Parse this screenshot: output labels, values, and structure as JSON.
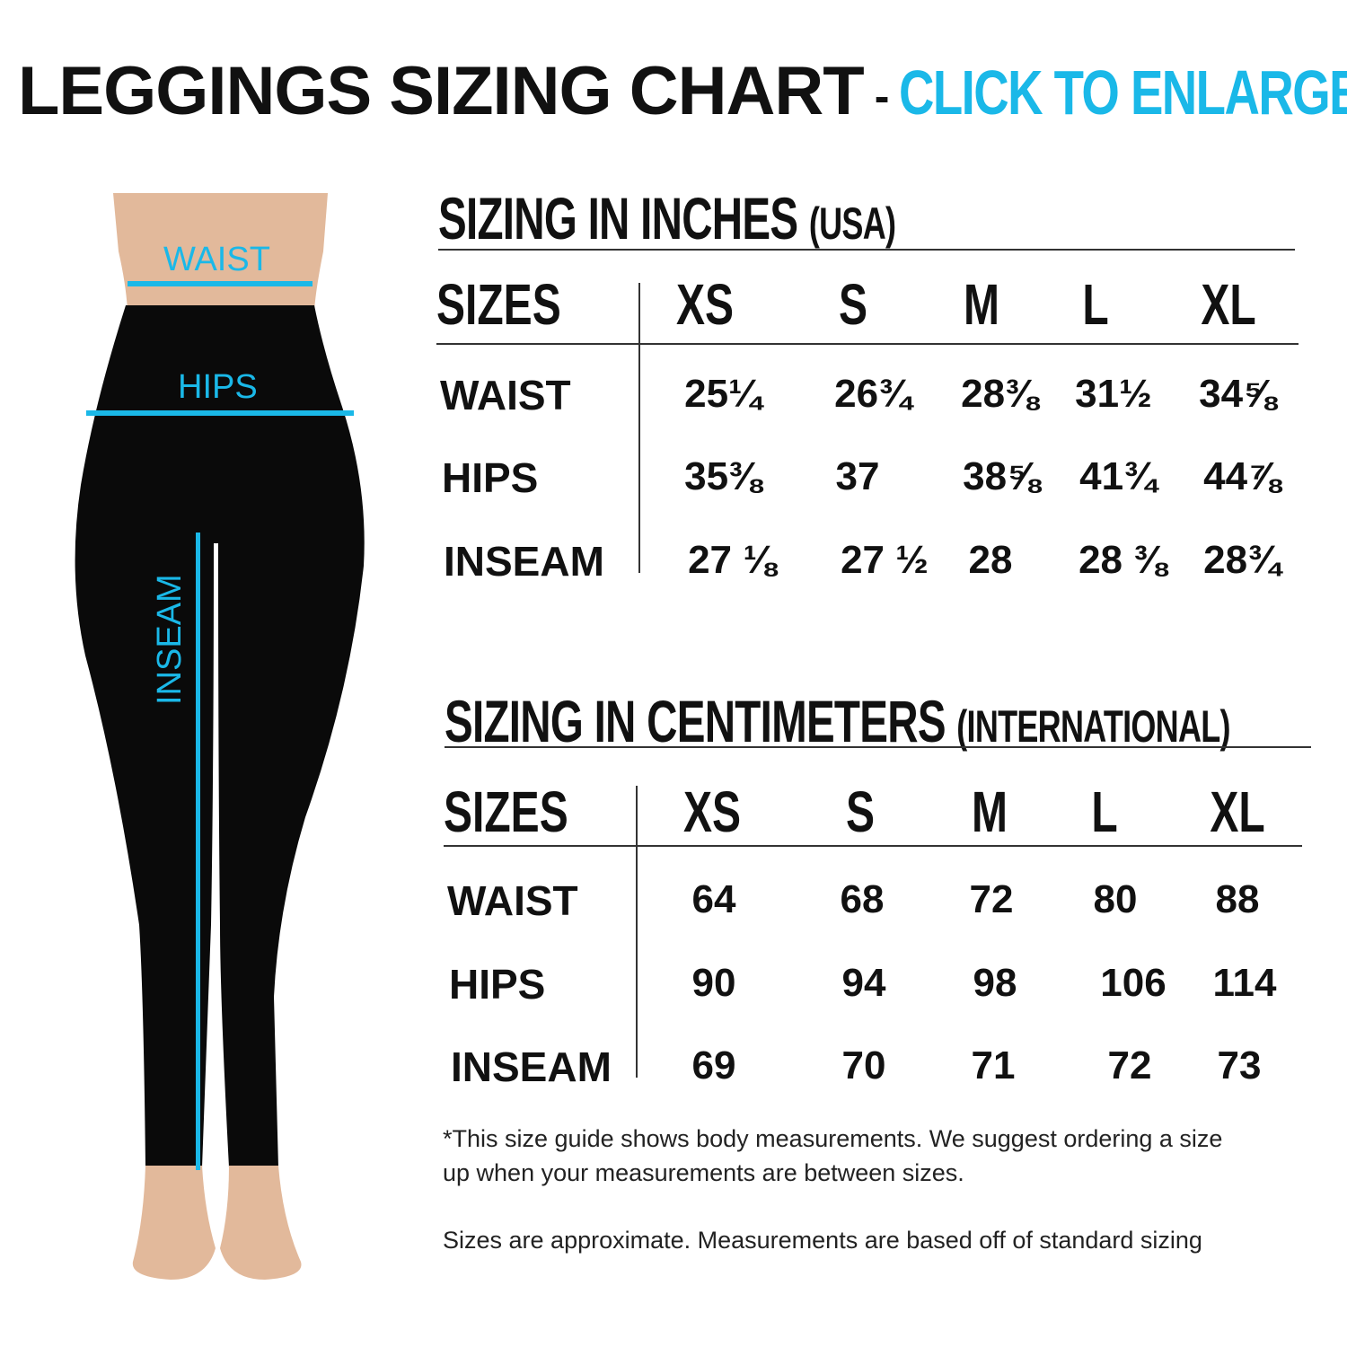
{
  "header": {
    "title": "LEGGINGS SIZING CHART",
    "separator": "-",
    "cta": "CLICK TO ENLARGE"
  },
  "colors": {
    "accent": "#1ab8e8",
    "text": "#111111",
    "leggings": "#0a0a0a",
    "skin": "#e0b89a"
  },
  "figure": {
    "labels": {
      "waist": "WAIST",
      "hips": "HIPS",
      "inseam": "INSEAM"
    }
  },
  "inches": {
    "title": "SIZING IN INCHES",
    "subtitle": "(USA)",
    "sizes_label": "SIZES",
    "sizes": [
      "XS",
      "S",
      "M",
      "L",
      "XL"
    ],
    "rows": [
      {
        "label": "WAIST",
        "values": [
          "25¼",
          "26¾",
          "28⅜",
          "31½",
          "34⅝"
        ]
      },
      {
        "label": "HIPS",
        "values": [
          "35⅜",
          "37",
          "38⅝",
          "41¾",
          "44⅞"
        ]
      },
      {
        "label": "INSEAM",
        "values": [
          "27 ⅛",
          "27 ½",
          "28",
          "28 ⅜",
          "28¾"
        ]
      }
    ]
  },
  "centimeters": {
    "title": "SIZING IN CENTIMETERS",
    "subtitle": "(INTERNATIONAL)",
    "sizes_label": "SIZES",
    "sizes": [
      "XS",
      "S",
      "M",
      "L",
      "XL"
    ],
    "rows": [
      {
        "label": "WAIST",
        "values": [
          "64",
          "68",
          "72",
          "80",
          "88"
        ]
      },
      {
        "label": "HIPS",
        "values": [
          "90",
          "94",
          "98",
          "106",
          "114"
        ]
      },
      {
        "label": "INSEAM",
        "values": [
          "69",
          "70",
          "71",
          "72",
          "73"
        ]
      }
    ]
  },
  "notes": {
    "line1": "*This size guide shows body measurements. We suggest ordering a size",
    "line2": "up when your measurements are between sizes.",
    "line3": "Sizes are approximate. Measurements are based off of standard sizing"
  }
}
